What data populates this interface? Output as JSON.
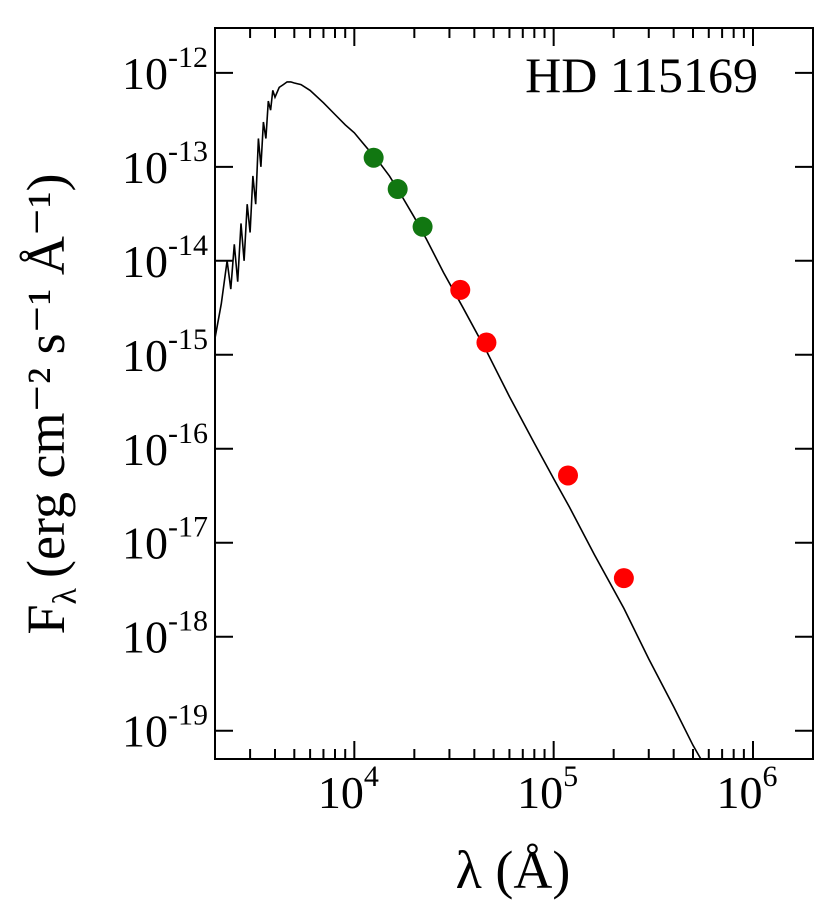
{
  "chart_data": {
    "type": "scatter",
    "title": "",
    "annotation": "HD 115169",
    "xlabel": "λ (Å)",
    "ylabel_main": "F",
    "ylabel_sub": "λ",
    "ylabel_units": "(erg cm⁻² s⁻¹ Å⁻¹)",
    "x_scale": "log",
    "y_scale": "log",
    "xlim": [
      2000,
      2000000
    ],
    "ylim": [
      5e-20,
      3e-12
    ],
    "grid": false,
    "legend": "none",
    "x_ticks": [
      {
        "value": 10000,
        "base": "10",
        "exp": "4"
      },
      {
        "value": 100000,
        "base": "10",
        "exp": "5"
      },
      {
        "value": 1000000,
        "base": "10",
        "exp": "6"
      }
    ],
    "y_ticks": [
      {
        "value": 1e-12,
        "base": "10",
        "exp": "-12"
      },
      {
        "value": 1e-13,
        "base": "10",
        "exp": "-13"
      },
      {
        "value": 1e-14,
        "base": "10",
        "exp": "-14"
      },
      {
        "value": 1e-15,
        "base": "10",
        "exp": "-15"
      },
      {
        "value": 1e-16,
        "base": "10",
        "exp": "-16"
      },
      {
        "value": 1e-17,
        "base": "10",
        "exp": "-17"
      },
      {
        "value": 1e-18,
        "base": "10",
        "exp": "-18"
      },
      {
        "value": 1e-19,
        "base": "10",
        "exp": "-19"
      }
    ],
    "series": [
      {
        "kind": "line",
        "color": "#000000",
        "x": [
          2000,
          2150,
          2300,
          2400,
          2500,
          2600,
          2700,
          2800,
          2900,
          3000,
          3100,
          3200,
          3300,
          3400,
          3500,
          3600,
          3700,
          3800,
          3900,
          4000,
          4200,
          4400,
          4600,
          4800,
          5000,
          5400,
          6000,
          7000,
          8000,
          9000,
          10000,
          11000,
          12000,
          13000,
          15000,
          17000,
          20000,
          23000,
          28000,
          35000,
          46000,
          60000,
          80000,
          100000,
          120000,
          160000,
          225000,
          300000,
          400000,
          500000,
          560000
        ],
        "y": [
          1.5e-15,
          3.5e-15,
          1e-14,
          5e-15,
          1.5e-14,
          6e-15,
          2.5e-14,
          1e-14,
          4e-14,
          2e-14,
          8e-14,
          4e-14,
          2e-13,
          1e-13,
          3e-13,
          2e-13,
          5e-13,
          4e-13,
          6.5e-13,
          5.5e-13,
          7e-13,
          7.5e-13,
          8e-13,
          8e-13,
          7.8e-13,
          7.5e-13,
          6.5e-13,
          4.8e-13,
          3.6e-13,
          2.8e-13,
          2.3e-13,
          1.8e-13,
          1.45e-13,
          1.2e-13,
          8e-14,
          5.2e-14,
          2.9e-14,
          1.7e-14,
          7.5e-15,
          3.2e-15,
          1.1e-15,
          3.6e-16,
          1.15e-16,
          4.8e-17,
          2.4e-17,
          7.5e-18,
          2e-18,
          5.8e-19,
          1.8e-19,
          7e-20,
          4.6e-20
        ]
      },
      {
        "kind": "points",
        "color": "#117711",
        "x": [
          12500,
          16500,
          22000
        ],
        "y": [
          1.25e-13,
          5.8e-14,
          2.3e-14
        ]
      },
      {
        "kind": "points",
        "color": "#ff0000",
        "x": [
          34000,
          46000,
          118000,
          225000
        ],
        "y": [
          4.9e-15,
          1.35e-15,
          5.2e-17,
          4.2e-18
        ]
      }
    ]
  }
}
